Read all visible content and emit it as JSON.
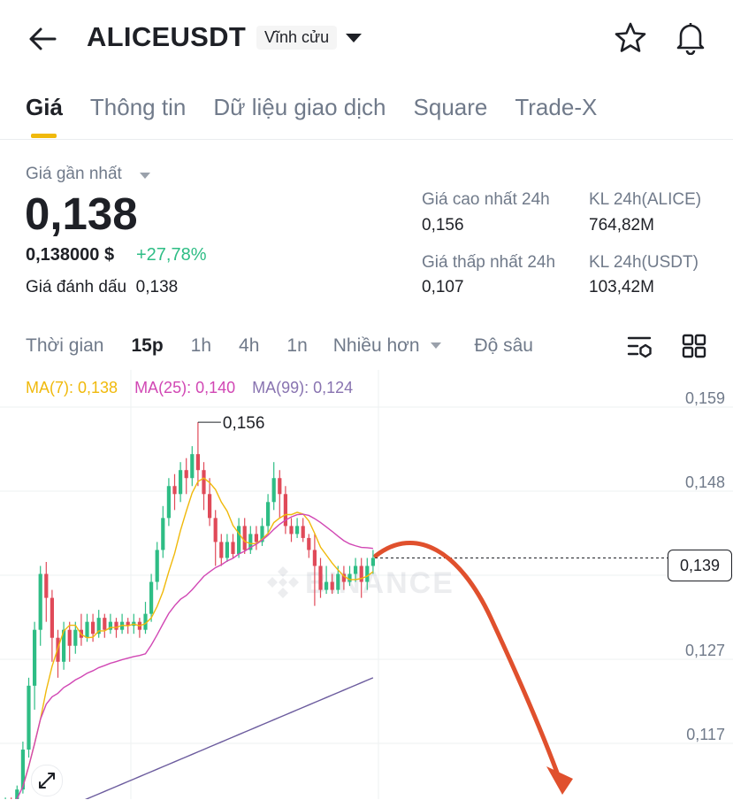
{
  "header": {
    "symbol": "ALICEUSDT",
    "contract_type": "Vĩnh cửu",
    "icons": [
      "back-arrow-icon",
      "chevron-down-icon",
      "star-icon",
      "bell-icon"
    ]
  },
  "tabs": [
    {
      "label": "Giá",
      "active": true
    },
    {
      "label": "Thông tin",
      "active": false
    },
    {
      "label": "Dữ liệu giao dịch",
      "active": false
    },
    {
      "label": "Square",
      "active": false
    },
    {
      "label": "Trade-X",
      "active": false
    }
  ],
  "price": {
    "last_label": "Giá gần nhất",
    "last_price": "0,138",
    "usd_price": "0,138000 $",
    "change": "+27,78%",
    "mark_label": "Giá đánh dấu",
    "mark_price": "0,138"
  },
  "stats": {
    "high_label": "Giá cao nhất 24h",
    "high_value": "0,156",
    "vol_alice_label": "KL 24h(ALICE)",
    "vol_alice_value": "764,82M",
    "low_label": "Giá thấp nhất 24h",
    "low_value": "0,107",
    "vol_usdt_label": "KL 24h(USDT)",
    "vol_usdt_value": "103,42M"
  },
  "timeframes": {
    "label": "Thời gian",
    "options": [
      "15p",
      "1h",
      "4h",
      "1n"
    ],
    "active": "15p",
    "more": "Nhiều hơn",
    "depth": "Độ sâu"
  },
  "ma_legend": {
    "ma7": "MA(7): 0,138",
    "ma25": "MA(25): 0,140",
    "ma99": "MA(99): 0,124"
  },
  "chart": {
    "y_ticks": [
      "0,159",
      "0,148",
      "0,127",
      "0,117"
    ],
    "current_price": "0,139",
    "high_marker": "0,156",
    "watermark": "BINANCE",
    "colors": {
      "up": "#2ebd85",
      "down": "#e04a59",
      "ma7": "#f0b90b",
      "ma25": "#d147b4",
      "ma99": "#6c5c9e",
      "arrow": "#e0502d"
    }
  },
  "chart_data": {
    "type": "candlestick",
    "ylim": [
      0.107,
      0.162
    ],
    "candles": [
      [
        0.1075,
        0.1085,
        0.107,
        0.109
      ],
      [
        0.1085,
        0.108,
        0.1075,
        0.109
      ],
      [
        0.108,
        0.11,
        0.1075,
        0.1105
      ],
      [
        0.11,
        0.115,
        0.1095,
        0.116
      ],
      [
        0.115,
        0.123,
        0.114,
        0.124
      ],
      [
        0.123,
        0.13,
        0.12,
        0.131
      ],
      [
        0.13,
        0.137,
        0.128,
        0.138
      ],
      [
        0.137,
        0.134,
        0.131,
        0.1385
      ],
      [
        0.134,
        0.129,
        0.126,
        0.135
      ],
      [
        0.129,
        0.126,
        0.124,
        0.13
      ],
      [
        0.126,
        0.13,
        0.125,
        0.131
      ],
      [
        0.13,
        0.128,
        0.126,
        0.131
      ],
      [
        0.128,
        0.13,
        0.127,
        0.131
      ],
      [
        0.13,
        0.129,
        0.128,
        0.132
      ],
      [
        0.129,
        0.131,
        0.1285,
        0.132
      ],
      [
        0.131,
        0.1295,
        0.1285,
        0.132
      ],
      [
        0.1295,
        0.1315,
        0.129,
        0.1325
      ],
      [
        0.1315,
        0.13,
        0.129,
        0.132
      ],
      [
        0.13,
        0.131,
        0.1295,
        0.132
      ],
      [
        0.131,
        0.13,
        0.129,
        0.1315
      ],
      [
        0.13,
        0.131,
        0.1295,
        0.132
      ],
      [
        0.131,
        0.1305,
        0.1295,
        0.1315
      ],
      [
        0.1305,
        0.131,
        0.1295,
        0.132
      ],
      [
        0.131,
        0.13,
        0.129,
        0.1315
      ],
      [
        0.13,
        0.132,
        0.1295,
        0.1335
      ],
      [
        0.132,
        0.136,
        0.131,
        0.137
      ],
      [
        0.136,
        0.14,
        0.135,
        0.141
      ],
      [
        0.14,
        0.144,
        0.139,
        0.1455
      ],
      [
        0.144,
        0.148,
        0.143,
        0.149
      ],
      [
        0.148,
        0.147,
        0.145,
        0.1495
      ],
      [
        0.147,
        0.15,
        0.146,
        0.151
      ],
      [
        0.15,
        0.149,
        0.147,
        0.1515
      ],
      [
        0.149,
        0.152,
        0.148,
        0.153
      ],
      [
        0.152,
        0.15,
        0.148,
        0.156
      ],
      [
        0.15,
        0.147,
        0.145,
        0.151
      ],
      [
        0.147,
        0.144,
        0.143,
        0.149
      ],
      [
        0.144,
        0.141,
        0.138,
        0.145
      ],
      [
        0.141,
        0.139,
        0.138,
        0.142
      ],
      [
        0.139,
        0.141,
        0.1385,
        0.142
      ],
      [
        0.141,
        0.1395,
        0.139,
        0.142
      ],
      [
        0.1395,
        0.143,
        0.139,
        0.144
      ],
      [
        0.143,
        0.14,
        0.1395,
        0.144
      ],
      [
        0.14,
        0.142,
        0.1395,
        0.143
      ],
      [
        0.142,
        0.141,
        0.14,
        0.143
      ],
      [
        0.141,
        0.143,
        0.1405,
        0.144
      ],
      [
        0.143,
        0.146,
        0.142,
        0.147
      ],
      [
        0.146,
        0.149,
        0.145,
        0.151
      ],
      [
        0.149,
        0.147,
        0.144,
        0.15
      ],
      [
        0.147,
        0.143,
        0.142,
        0.148
      ],
      [
        0.143,
        0.142,
        0.141,
        0.144
      ],
      [
        0.142,
        0.143,
        0.1415,
        0.144
      ],
      [
        0.143,
        0.1415,
        0.141,
        0.144
      ],
      [
        0.1415,
        0.14,
        0.139,
        0.142
      ],
      [
        0.14,
        0.138,
        0.133,
        0.142
      ],
      [
        0.138,
        0.135,
        0.134,
        0.139
      ],
      [
        0.135,
        0.136,
        0.1345,
        0.138
      ],
      [
        0.136,
        0.135,
        0.1345,
        0.137
      ],
      [
        0.135,
        0.137,
        0.1345,
        0.138
      ],
      [
        0.137,
        0.136,
        0.135,
        0.138
      ],
      [
        0.136,
        0.137,
        0.1355,
        0.138
      ],
      [
        0.137,
        0.138,
        0.136,
        0.139
      ],
      [
        0.138,
        0.136,
        0.134,
        0.139
      ],
      [
        0.136,
        0.138,
        0.135,
        0.139
      ],
      [
        0.138,
        0.139,
        0.137,
        0.14
      ]
    ]
  }
}
